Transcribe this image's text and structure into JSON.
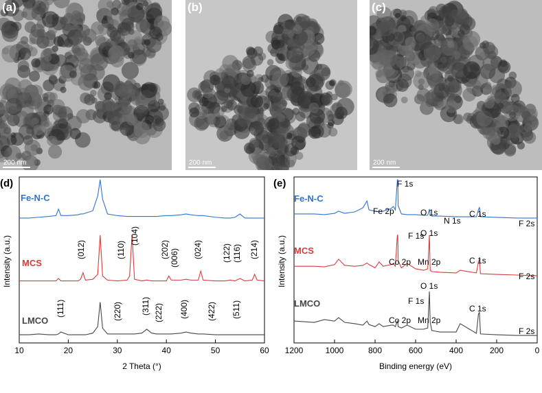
{
  "images": [
    {
      "label": "(a)",
      "scale": "200 nm"
    },
    {
      "label": "(b)",
      "scale": "200 nm"
    },
    {
      "label": "(c)",
      "scale": "200 nm"
    }
  ],
  "chart_data": [
    {
      "type": "line",
      "panel_label": "(d)",
      "xlabel": "2 Theta (°)",
      "ylabel": "Intensity (a.u.)",
      "xlim": [
        10,
        60
      ],
      "xticks": [
        10,
        20,
        30,
        40,
        50,
        60
      ],
      "ylim": [
        0,
        100
      ],
      "x": [
        10,
        12,
        14,
        16,
        17.5,
        18,
        18.5,
        20,
        22,
        22.5,
        23,
        23.5,
        25,
        26,
        26.5,
        27,
        28,
        30,
        32,
        32.5,
        33,
        33.5,
        35,
        36,
        37,
        38,
        40,
        40.5,
        41,
        43,
        44,
        45,
        46.5,
        47,
        47.5,
        50,
        52,
        53,
        54,
        55,
        56,
        57.5,
        58,
        58.5,
        60
      ],
      "series": [
        {
          "name": "Fe-N-C",
          "color": "#2e73cc",
          "values": [
            76.5,
            76.5,
            77,
            77.5,
            78,
            82,
            78,
            78,
            78.5,
            79,
            79,
            79.5,
            81,
            90,
            100,
            88,
            79,
            78,
            77.5,
            77.5,
            77.5,
            77.5,
            77.5,
            77.5,
            77.5,
            77.5,
            78,
            78,
            78,
            78.5,
            79,
            78.5,
            78,
            78,
            78,
            77,
            76.5,
            76.5,
            77,
            79,
            76.5,
            76.5,
            76.5,
            76.5,
            76.5
          ]
        },
        {
          "name": "MCS",
          "color": "#d93a3a",
          "values": [
            38,
            38,
            38,
            38,
            38,
            39.5,
            38,
            38,
            38,
            39,
            43,
            38.5,
            39,
            42,
            66,
            41,
            38.5,
            38,
            38.5,
            41,
            66.4,
            39,
            38,
            38.5,
            38,
            38,
            38,
            41,
            38.5,
            38.5,
            39,
            38.5,
            38.5,
            44,
            38.5,
            38,
            38,
            38.5,
            38,
            39.5,
            38,
            38.5,
            42,
            38.5,
            38
          ]
        },
        {
          "name": "LMCO",
          "color": "#454545",
          "values": [
            5,
            5,
            5.5,
            5,
            5,
            5.5,
            6.7,
            5,
            5,
            5,
            5,
            5,
            6,
            10,
            25,
            9,
            5.5,
            5.5,
            5.5,
            5.5,
            5.5,
            5.5,
            6,
            8.4,
            6,
            5.5,
            5.5,
            5.5,
            5.5,
            6,
            6.7,
            6,
            5.5,
            5.5,
            5.5,
            5,
            5,
            5,
            5,
            5,
            5,
            5,
            5,
            5,
            5
          ]
        }
      ],
      "annotations": [
        "(111)",
        "(220)",
        "(311)",
        "(222)",
        "(400)",
        "(422)",
        "(511)",
        "(012)",
        "(110)",
        "(104)",
        "(202)",
        "(006)",
        "(024)",
        "(122)",
        "(116)",
        "(214)"
      ]
    },
    {
      "type": "line",
      "panel_label": "(e)",
      "xlabel": "Binding energy (eV)",
      "ylabel": "Intensity (a.u.)",
      "xlim": [
        1200,
        0
      ],
      "xticks": [
        1200,
        1000,
        800,
        600,
        400,
        200,
        0
      ],
      "ylim": [
        0,
        100
      ],
      "x": [
        1200,
        1100,
        1050,
        1000,
        980,
        950,
        900,
        860,
        840,
        830,
        800,
        780,
        760,
        720,
        710,
        700,
        690,
        688,
        686,
        670,
        642,
        600,
        560,
        540,
        532,
        528,
        520,
        480,
        400,
        380,
        300,
        290,
        285,
        280,
        200,
        100,
        30,
        0
      ],
      "series": [
        {
          "name": "Fe-N-C",
          "color": "#2e73cc",
          "values": [
            79,
            79,
            78.6,
            79.4,
            80.7,
            79.4,
            80.3,
            82.8,
            87,
            81.5,
            80.7,
            80.3,
            80.7,
            82.4,
            83.6,
            81.5,
            100,
            100,
            84,
            79,
            78.6,
            78.6,
            78.2,
            78.2,
            82,
            78.2,
            77.7,
            77.7,
            77.3,
            77.3,
            77.3,
            81.5,
            83.2,
            77.3,
            76.9,
            76.5,
            76.5,
            76.5
          ]
        },
        {
          "name": "MCS",
          "color": "#d93a3a",
          "values": [
            47,
            47,
            46.6,
            48,
            51.3,
            47.5,
            47,
            47.5,
            49,
            48,
            46,
            49.6,
            47,
            48,
            48.7,
            47,
            66,
            66,
            50.4,
            46,
            48.7,
            45.4,
            44.5,
            45.4,
            66,
            44.5,
            43.7,
            43.3,
            42.9,
            44.5,
            42.9,
            49.6,
            51.3,
            42.4,
            42,
            41.6,
            41.2,
            41.2
          ]
        },
        {
          "name": "LMCO",
          "color": "#454545",
          "values": [
            13.4,
            12.6,
            14.3,
            13.4,
            15.5,
            12.6,
            11.8,
            10.9,
            13.4,
            11.3,
            10,
            11.8,
            10,
            10.9,
            10.9,
            10,
            13.4,
            12.6,
            10,
            9.2,
            10.9,
            8.4,
            8.4,
            9.2,
            31.5,
            12.6,
            7.6,
            6.7,
            6.7,
            11.8,
            5.9,
            17.6,
            18.9,
            5.5,
            5,
            4.6,
            4.6,
            4.6
          ]
        }
      ],
      "annotations": [
        "F 1s",
        "Fe 2p",
        "O 1s",
        "N 1s",
        "C 1s",
        "F 2s",
        "F 1s",
        "O 1s",
        "Co 2p",
        "Mn 2p",
        "C 1s",
        "F 2s",
        "O 1s",
        "F 1s",
        "C 1s",
        "Co 2p",
        "Mn 2p",
        "F 2s"
      ]
    }
  ]
}
